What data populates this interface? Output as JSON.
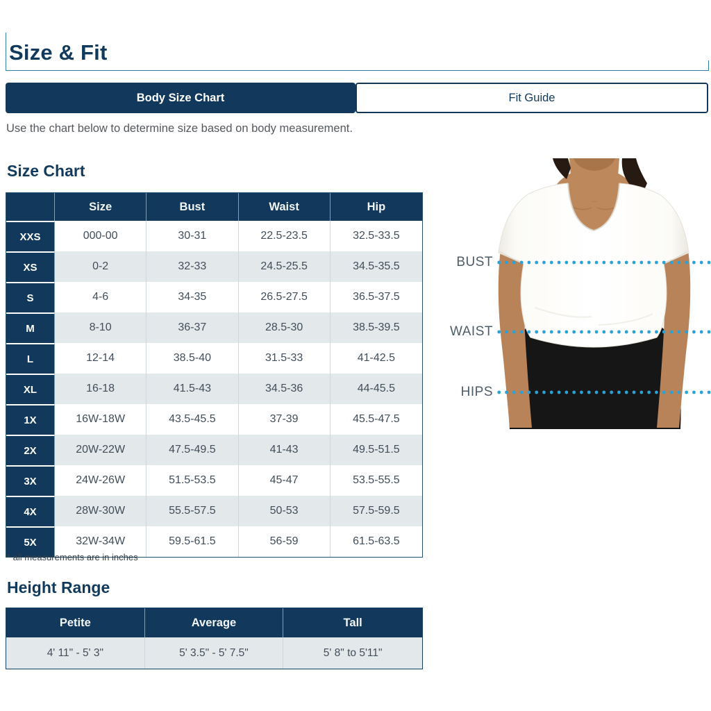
{
  "page": {
    "title": "Size & Fit",
    "description": "Use the chart below to determine size based on body measurement."
  },
  "tabs": [
    {
      "label": "Body Size Chart",
      "active": true
    },
    {
      "label": "Fit Guide",
      "active": false
    }
  ],
  "size_chart": {
    "heading": "Size Chart",
    "columns": [
      "Size",
      "Bust",
      "Waist",
      "Hip"
    ],
    "rows": [
      {
        "label": "XXS",
        "size": "000-00",
        "bust": "30-31",
        "waist": "22.5-23.5",
        "hip": "32.5-33.5"
      },
      {
        "label": "XS",
        "size": "0-2",
        "bust": "32-33",
        "waist": "24.5-25.5",
        "hip": "34.5-35.5"
      },
      {
        "label": "S",
        "size": "4-6",
        "bust": "34-35",
        "waist": "26.5-27.5",
        "hip": "36.5-37.5"
      },
      {
        "label": "M",
        "size": "8-10",
        "bust": "36-37",
        "waist": "28.5-30",
        "hip": "38.5-39.5"
      },
      {
        "label": "L",
        "size": "12-14",
        "bust": "38.5-40",
        "waist": "31.5-33",
        "hip": "41-42.5"
      },
      {
        "label": "XL",
        "size": "16-18",
        "bust": "41.5-43",
        "waist": "34.5-36",
        "hip": "44-45.5"
      },
      {
        "label": "1X",
        "size": "16W-18W",
        "bust": "43.5-45.5",
        "waist": "37-39",
        "hip": "45.5-47.5"
      },
      {
        "label": "2X",
        "size": "20W-22W",
        "bust": "47.5-49.5",
        "waist": "41-43",
        "hip": "49.5-51.5"
      },
      {
        "label": "3X",
        "size": "24W-26W",
        "bust": "51.5-53.5",
        "waist": "45-47",
        "hip": "53.5-55.5"
      },
      {
        "label": "4X",
        "size": "28W-30W",
        "bust": "55.5-57.5",
        "waist": "50-53",
        "hip": "57.5-59.5"
      },
      {
        "label": "5X",
        "size": "32W-34W",
        "bust": "59.5-61.5",
        "waist": "56-59",
        "hip": "61.5-63.5"
      }
    ],
    "footnote": "* all measurements are in inches"
  },
  "figure": {
    "labels": [
      "BUST",
      "WAIST",
      "HIPS"
    ]
  },
  "height_range": {
    "heading": "Height Range",
    "columns": [
      "Petite",
      "Average",
      "Tall"
    ],
    "values": [
      "4' 11\" - 5' 3\"",
      "5' 3.5\" - 5' 7.5\"",
      "5' 8\" to 5'11\""
    ]
  },
  "colors": {
    "navy": "#12395b",
    "row_alt": "#e3e8ea",
    "dot_blue": "#2aa2d6",
    "underline_blue": "#2e7eae"
  }
}
